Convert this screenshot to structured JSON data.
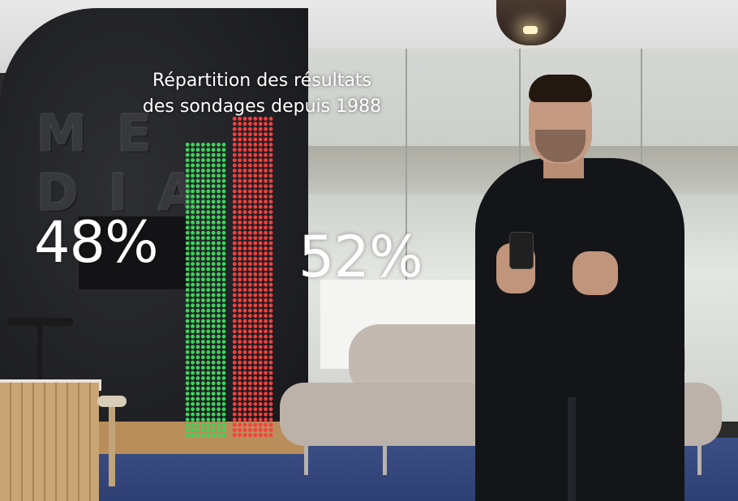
{
  "chart_data": {
    "type": "bar",
    "title_lines": [
      "Répartition des résultats",
      "des sondages depuis 1988"
    ],
    "categories": [
      "",
      ""
    ],
    "series": [
      {
        "values": [
          48,
          52
        ]
      }
    ],
    "value_labels": [
      "48%",
      "52%"
    ],
    "colors": [
      "#3fd35c",
      "#ff3d3d"
    ],
    "style": "dot-matrix columns",
    "ylim": [
      0,
      100
    ],
    "grid": false
  },
  "background_scene": "video studio with presenter"
}
